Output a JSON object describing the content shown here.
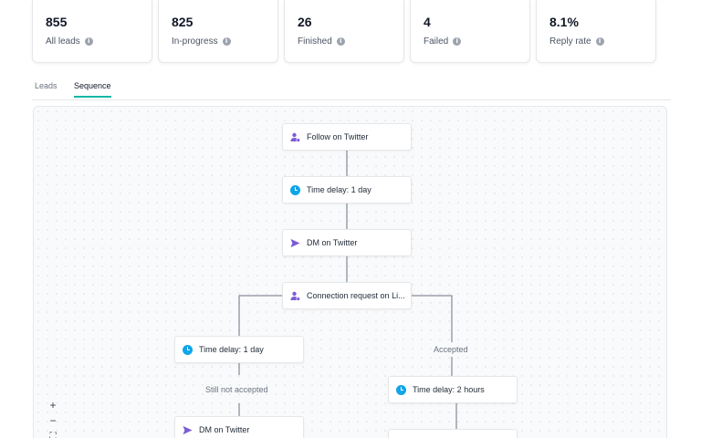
{
  "stats": [
    {
      "value": "855",
      "label": "All leads"
    },
    {
      "value": "825",
      "label": "In-progress"
    },
    {
      "value": "26",
      "label": "Finished"
    },
    {
      "value": "4",
      "label": "Failed"
    },
    {
      "value": "8.1%",
      "label": "Reply rate"
    }
  ],
  "tabs": [
    {
      "label": "Leads",
      "active": false
    },
    {
      "label": "Sequence",
      "active": true
    }
  ],
  "nodes": {
    "follow": {
      "label": "Follow on Twitter",
      "icon": "user-icon"
    },
    "delay1": {
      "label": "Time delay: 1 day",
      "icon": "clock-icon"
    },
    "dm1": {
      "label": "DM on Twitter",
      "icon": "send-icon"
    },
    "connect": {
      "label": "Connection request on Li...",
      "icon": "user-icon"
    },
    "delay_left": {
      "label": "Time delay: 1 day",
      "icon": "clock-icon"
    },
    "delay_right": {
      "label": "Time delay: 2 hours",
      "icon": "clock-icon"
    },
    "dm2": {
      "label": "DM on Twitter",
      "icon": "send-icon"
    }
  },
  "edge_labels": {
    "accepted": "Accepted",
    "not_accepted": "Still not accepted"
  },
  "zoom_controls": {
    "zoom_in": "+",
    "zoom_out": "−",
    "fit": "⛶"
  },
  "colors": {
    "accent": "#14b8a6",
    "purple": "#7c5cd6",
    "clock": "#0ea5e9"
  }
}
